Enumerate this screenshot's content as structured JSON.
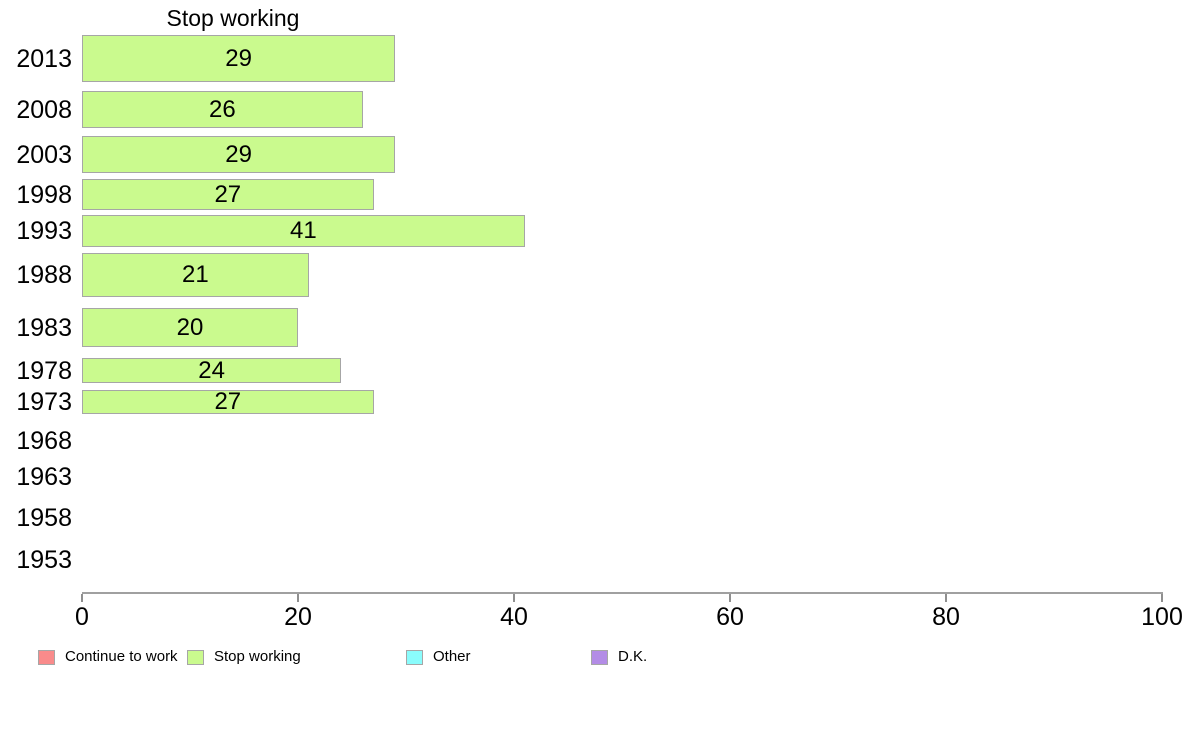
{
  "chart_data": {
    "type": "bar",
    "orientation": "horizontal",
    "title": "Stop working",
    "categories": [
      "2013",
      "2008",
      "2003",
      "1998",
      "1993",
      "1988",
      "1983",
      "1978",
      "1973",
      "1968",
      "1963",
      "1958",
      "1953"
    ],
    "values": [
      29,
      26,
      29,
      27,
      41,
      21,
      20,
      24,
      27,
      null,
      null,
      null,
      null
    ],
    "value_labels_shown": true,
    "xlabel": "",
    "ylabel": "",
    "xlim": [
      0,
      100
    ],
    "x_ticks": [
      0,
      20,
      40,
      60,
      80,
      100
    ],
    "grid": "off",
    "bar_fill_color": "#cafa8e",
    "bar_border_color": "#a6a6a6",
    "axis_color": "#a0a0a0",
    "legend_position": "bottom",
    "legend": [
      {
        "label": "Continue to work",
        "color": "#f98b8b"
      },
      {
        "label": "Stop working",
        "color": "#cafa8e"
      },
      {
        "label": "Other",
        "color": "#8afcfc"
      },
      {
        "label": "D.K.",
        "color": "#b38ce6"
      }
    ]
  }
}
